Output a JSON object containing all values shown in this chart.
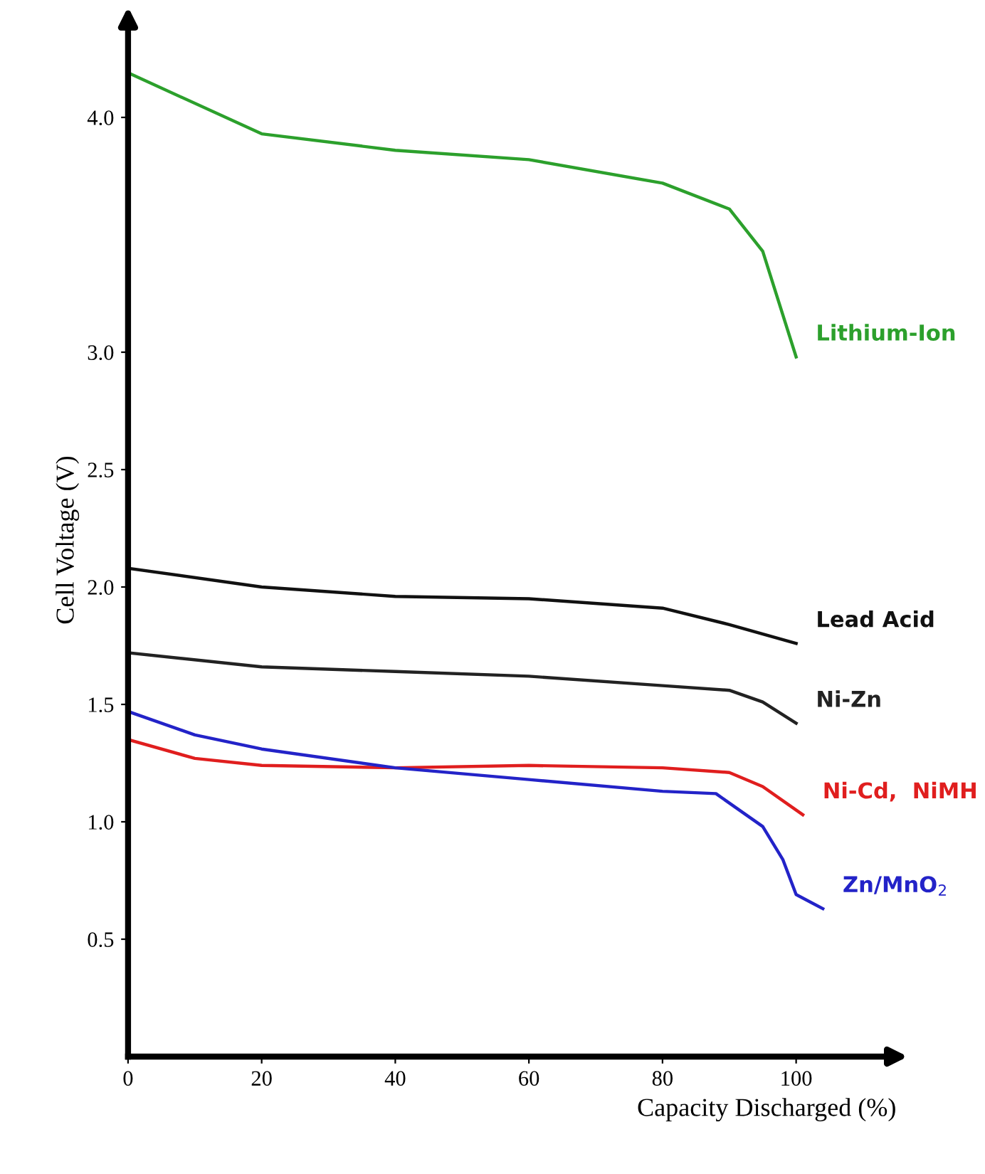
{
  "chart_data": {
    "type": "line",
    "xlabel": "Capacity Discharged (%)",
    "ylabel": "Cell Voltage (V)",
    "xlim": [
      0,
      115
    ],
    "xticks": [
      0,
      20,
      40,
      60,
      80,
      100
    ],
    "ylim": [
      0,
      4.4
    ],
    "yticks": [
      0.5,
      {
        "value": 1,
        "label": "1.0"
      },
      1.5,
      {
        "value": 2,
        "label": "2.0"
      },
      2.5,
      {
        "value": 3,
        "label": "3.0"
      },
      {
        "value": 4,
        "label": "4.0"
      }
    ],
    "grid": false,
    "legend": false,
    "marker": "none",
    "line_style": "solid",
    "series": [
      {
        "name": "Lithium-Ion",
        "color": "#2ca02c",
        "x": [
          0,
          20,
          40,
          60,
          80,
          90,
          95,
          100
        ],
        "values": [
          4.19,
          3.93,
          3.86,
          3.82,
          3.72,
          3.61,
          3.43,
          2.98
        ]
      },
      {
        "name": "Lead Acid",
        "color": "#111111",
        "x": [
          0,
          20,
          40,
          60,
          80,
          90,
          100
        ],
        "values": [
          2.08,
          2.0,
          1.96,
          1.95,
          1.91,
          1.84,
          1.76
        ]
      },
      {
        "name": "Ni-Zn",
        "color": "#222222",
        "x": [
          0,
          20,
          40,
          60,
          80,
          90,
          95,
          100
        ],
        "values": [
          1.72,
          1.66,
          1.64,
          1.62,
          1.58,
          1.56,
          1.51,
          1.42
        ]
      },
      {
        "name": "Ni-Cd,  NiMH",
        "color": "#e01e1e",
        "x": [
          0,
          10,
          20,
          40,
          60,
          80,
          90,
          95,
          101
        ],
        "values": [
          1.35,
          1.27,
          1.24,
          1.23,
          1.24,
          1.23,
          1.21,
          1.15,
          1.03
        ]
      },
      {
        "name": "Zn/MnO$_{2}$",
        "color": "#2323c8",
        "x": [
          0,
          10,
          20,
          40,
          60,
          80,
          88,
          95,
          98,
          100,
          104
        ],
        "values": [
          1.47,
          1.37,
          1.31,
          1.23,
          1.18,
          1.13,
          1.12,
          0.98,
          0.84,
          0.69,
          0.63
        ]
      }
    ]
  }
}
